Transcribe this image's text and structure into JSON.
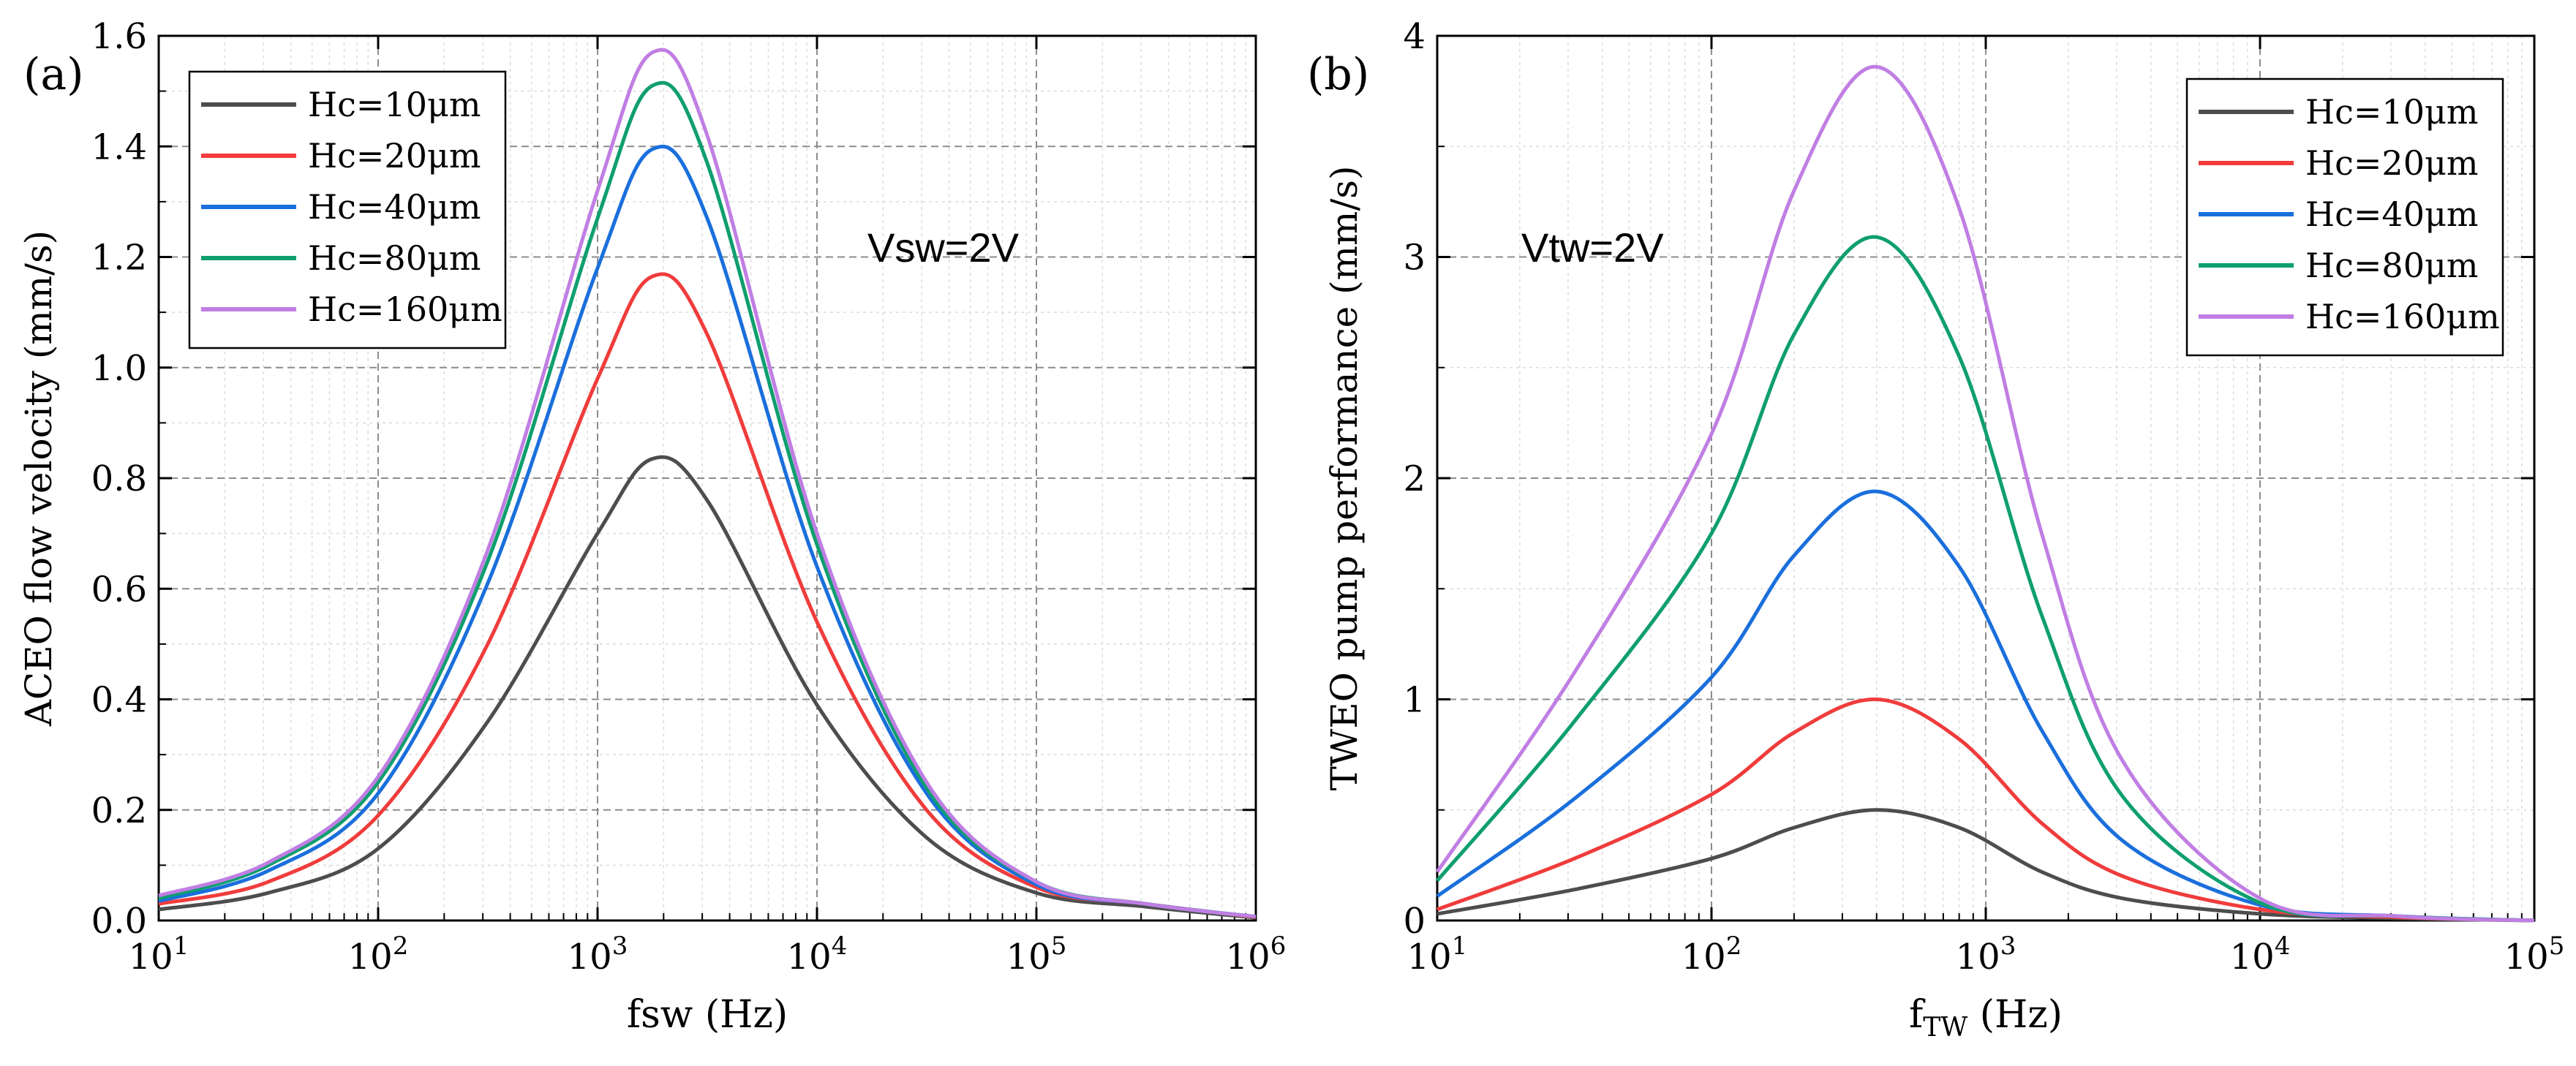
{
  "chart_data": [
    {
      "type": "line",
      "panel_label": "(a)",
      "title": "",
      "xlabel": "fsw (Hz)",
      "ylabel": "ACEO flow velocity (mm/s)",
      "x_scale": "log",
      "xlim": [
        10,
        1000000
      ],
      "ylim": [
        0,
        1.6
      ],
      "x_ticks": [
        {
          "base": "10",
          "exp": "1"
        },
        {
          "base": "10",
          "exp": "2"
        },
        {
          "base": "10",
          "exp": "3"
        },
        {
          "base": "10",
          "exp": "4"
        },
        {
          "base": "10",
          "exp": "5"
        },
        {
          "base": "10",
          "exp": "6"
        }
      ],
      "y_ticks": [
        "0.0",
        "0.2",
        "0.4",
        "0.6",
        "0.8",
        "1.0",
        "1.2",
        "1.4",
        "1.6"
      ],
      "grid": true,
      "legend_position": "top-left",
      "annotation": "Vsw=2V",
      "x": [
        10,
        31.6,
        100,
        316,
        1000,
        1780,
        3160,
        10000,
        31600,
        100000,
        316000,
        1000000
      ],
      "series": [
        {
          "name": "Hc=10μm",
          "color": "#4d4d4d",
          "values": [
            0.02,
            0.05,
            0.13,
            0.36,
            0.7,
            0.835,
            0.76,
            0.39,
            0.15,
            0.05,
            0.025,
            0.005
          ]
        },
        {
          "name": "Hc=20μm",
          "color": "#f03c3c",
          "values": [
            0.03,
            0.07,
            0.19,
            0.5,
            0.98,
            1.165,
            1.06,
            0.54,
            0.2,
            0.06,
            0.03,
            0.006
          ]
        },
        {
          "name": "Hc=40μm",
          "color": "#1a6fdc",
          "values": [
            0.035,
            0.09,
            0.23,
            0.61,
            1.18,
            1.395,
            1.27,
            0.64,
            0.23,
            0.065,
            0.03,
            0.007
          ]
        },
        {
          "name": "Hc=80μm",
          "color": "#0f9f6e",
          "values": [
            0.04,
            0.1,
            0.25,
            0.65,
            1.27,
            1.51,
            1.37,
            0.68,
            0.24,
            0.07,
            0.03,
            0.007
          ]
        },
        {
          "name": "Hc=160μm",
          "color": "#c07ee3",
          "values": [
            0.045,
            0.105,
            0.26,
            0.67,
            1.32,
            1.57,
            1.42,
            0.7,
            0.25,
            0.07,
            0.03,
            0.007
          ]
        }
      ]
    },
    {
      "type": "line",
      "panel_label": "(b)",
      "title": "",
      "xlabel_main": "f",
      "xlabel_sub": "TW",
      "xlabel_unit": " (Hz)",
      "ylabel": "TWEO pump performance (mm/s)",
      "x_scale": "log",
      "xlim": [
        10,
        100000
      ],
      "ylim": [
        0,
        4
      ],
      "x_ticks": [
        {
          "base": "10",
          "exp": "1"
        },
        {
          "base": "10",
          "exp": "2"
        },
        {
          "base": "10",
          "exp": "3"
        },
        {
          "base": "10",
          "exp": "4"
        },
        {
          "base": "10",
          "exp": "5"
        }
      ],
      "y_ticks": [
        "0",
        "1",
        "2",
        "3",
        "4"
      ],
      "grid": true,
      "legend_position": "top-right",
      "annotation": "Vtw=2V",
      "x": [
        10,
        31.6,
        100,
        200,
        400,
        800,
        1600,
        3160,
        10000,
        31600,
        100000
      ],
      "series": [
        {
          "name": "Hc=10μm",
          "color": "#4d4d4d",
          "values": [
            0.03,
            0.14,
            0.28,
            0.42,
            0.5,
            0.42,
            0.22,
            0.1,
            0.03,
            0.01,
            0.0
          ]
        },
        {
          "name": "Hc=20μm",
          "color": "#f03c3c",
          "values": [
            0.05,
            0.28,
            0.57,
            0.85,
            1.0,
            0.82,
            0.44,
            0.2,
            0.05,
            0.015,
            0.0
          ]
        },
        {
          "name": "Hc=40μm",
          "color": "#1a6fdc",
          "values": [
            0.11,
            0.55,
            1.1,
            1.65,
            1.94,
            1.6,
            0.86,
            0.36,
            0.07,
            0.02,
            0.0
          ]
        },
        {
          "name": "Hc=80μm",
          "color": "#0f9f6e",
          "values": [
            0.18,
            0.9,
            1.75,
            2.65,
            3.09,
            2.55,
            1.38,
            0.56,
            0.08,
            0.02,
            0.0
          ]
        },
        {
          "name": "Hc=160μm",
          "color": "#c07ee3",
          "values": [
            0.22,
            1.12,
            2.2,
            3.3,
            3.86,
            3.22,
            1.75,
            0.72,
            0.1,
            0.02,
            0.0
          ]
        }
      ]
    }
  ]
}
